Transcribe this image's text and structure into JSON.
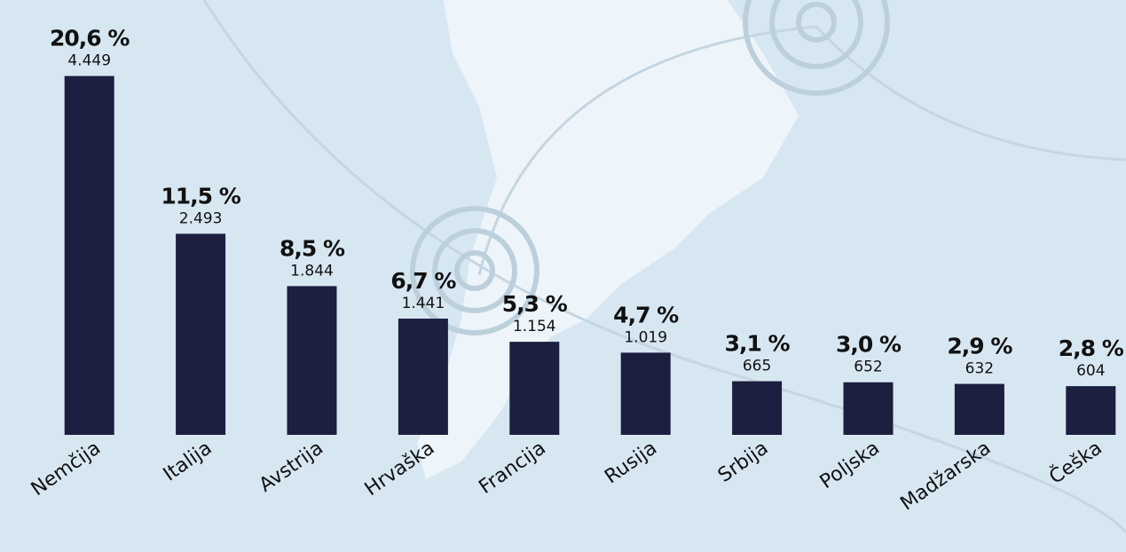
{
  "chart_data": {
    "type": "bar",
    "categories": [
      "Nemčija",
      "Italija",
      "Avstrija",
      "Hrvaška",
      "Francija",
      "Rusija",
      "Srbija",
      "Poljska",
      "Madžarska",
      "Češka"
    ],
    "values": [
      4449,
      2493,
      1844,
      1441,
      1154,
      1019,
      665,
      652,
      632,
      604
    ],
    "value_labels": [
      "4.449",
      "2.493",
      "1.844",
      "1.441",
      "1.154",
      "1.019",
      "665",
      "652",
      "632",
      "604"
    ],
    "shares": [
      20.6,
      11.5,
      8.5,
      6.7,
      5.3,
      4.7,
      3.1,
      3.0,
      2.9,
      2.8
    ],
    "share_labels": [
      "20,6 %",
      "11,5 %",
      "8,5 %",
      "6,7 %",
      "5,3 %",
      "4,7 %",
      "3,1 %",
      "3,0 %",
      "2,9 %",
      "2,8 %"
    ],
    "color": "#1c1f3f",
    "ylim": [
      0,
      4500
    ]
  }
}
